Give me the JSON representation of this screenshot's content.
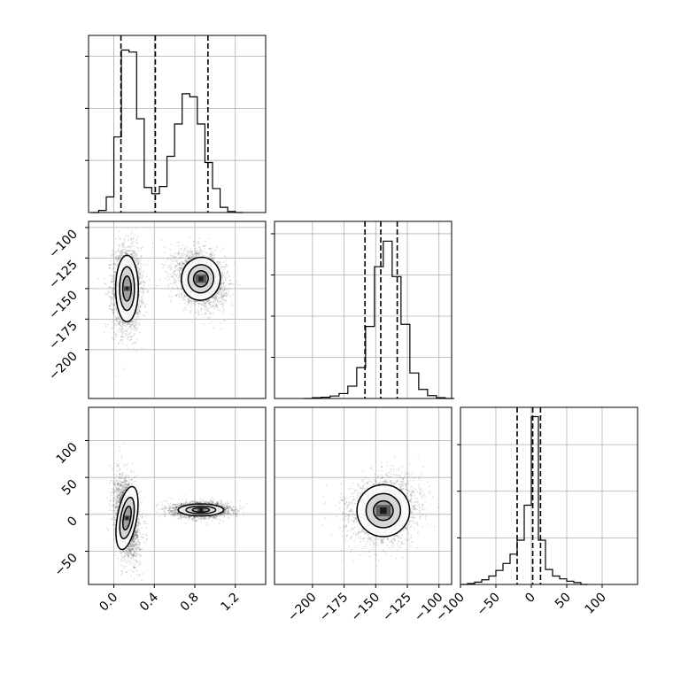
{
  "chart_data": [
    {
      "type": "histogram",
      "panel": "x0-marginal",
      "x_range": [
        -0.25,
        1.5
      ],
      "bins": [
        {
          "x0": -0.15,
          "x1": -0.075,
          "count": 4
        },
        {
          "x0": -0.075,
          "x1": 0.0,
          "count": 30
        },
        {
          "x0": 0.0,
          "x1": 0.075,
          "count": 145
        },
        {
          "x0": 0.075,
          "x1": 0.15,
          "count": 312
        },
        {
          "x0": 0.15,
          "x1": 0.225,
          "count": 308
        },
        {
          "x0": 0.225,
          "x1": 0.3,
          "count": 180
        },
        {
          "x0": 0.3,
          "x1": 0.375,
          "count": 48
        },
        {
          "x0": 0.375,
          "x1": 0.45,
          "count": 36
        },
        {
          "x0": 0.45,
          "x1": 0.525,
          "count": 50
        },
        {
          "x0": 0.525,
          "x1": 0.6,
          "count": 108
        },
        {
          "x0": 0.6,
          "x1": 0.675,
          "count": 170
        },
        {
          "x0": 0.675,
          "x1": 0.75,
          "count": 228
        },
        {
          "x0": 0.75,
          "x1": 0.825,
          "count": 222
        },
        {
          "x0": 0.825,
          "x1": 0.9,
          "count": 170
        },
        {
          "x0": 0.9,
          "x1": 0.975,
          "count": 96
        },
        {
          "x0": 0.975,
          "x1": 1.05,
          "count": 46
        },
        {
          "x0": 1.05,
          "x1": 1.125,
          "count": 10
        },
        {
          "x0": 1.125,
          "x1": 1.2,
          "count": 2
        }
      ],
      "quantiles": [
        0.07,
        0.41,
        0.93
      ],
      "y_ticks": [
        100,
        200,
        300
      ],
      "ylim": [
        0,
        340
      ]
    },
    {
      "type": "histogram",
      "panel": "x1-marginal",
      "x_range": [
        -230,
        -90
      ],
      "bins": [
        {
          "x0": -200,
          "x1": -193,
          "count": 2
        },
        {
          "x0": -193,
          "x1": -186,
          "count": 3
        },
        {
          "x0": -186,
          "x1": -179,
          "count": 6
        },
        {
          "x0": -179,
          "x1": -172,
          "count": 12
        },
        {
          "x0": -172,
          "x1": -165,
          "count": 30
        },
        {
          "x0": -165,
          "x1": -158,
          "count": 75
        },
        {
          "x0": -158,
          "x1": -151,
          "count": 175
        },
        {
          "x0": -151,
          "x1": -144,
          "count": 320
        },
        {
          "x0": -144,
          "x1": -137,
          "count": 382
        },
        {
          "x0": -137,
          "x1": -130,
          "count": 296
        },
        {
          "x0": -130,
          "x1": -123,
          "count": 180
        },
        {
          "x0": -123,
          "x1": -116,
          "count": 62
        },
        {
          "x0": -116,
          "x1": -109,
          "count": 22
        },
        {
          "x0": -109,
          "x1": -102,
          "count": 7
        },
        {
          "x0": -102,
          "x1": -95,
          "count": 2
        }
      ],
      "quantiles": [
        -158.5,
        -146,
        -133
      ],
      "y_ticks": [
        100,
        200,
        300,
        400
      ],
      "ylim": [
        0,
        430
      ]
    },
    {
      "type": "histogram",
      "panel": "x2-marginal",
      "x_range": [
        -100,
        150
      ],
      "bins": [
        {
          "x0": -90,
          "x1": -80,
          "count": 2
        },
        {
          "x0": -80,
          "x1": -70,
          "count": 5
        },
        {
          "x0": -70,
          "x1": -60,
          "count": 10
        },
        {
          "x0": -60,
          "x1": -50,
          "count": 18
        },
        {
          "x0": -50,
          "x1": -40,
          "count": 30
        },
        {
          "x0": -40,
          "x1": -30,
          "count": 45
        },
        {
          "x0": -30,
          "x1": -20,
          "count": 65
        },
        {
          "x0": -20,
          "x1": -10,
          "count": 95
        },
        {
          "x0": -10,
          "x1": 0,
          "count": 170
        },
        {
          "x0": 0,
          "x1": 10,
          "count": 360
        },
        {
          "x0": 10,
          "x1": 20,
          "count": 95
        },
        {
          "x0": 20,
          "x1": 30,
          "count": 32
        },
        {
          "x0": 30,
          "x1": 40,
          "count": 18
        },
        {
          "x0": 40,
          "x1": 50,
          "count": 12
        },
        {
          "x0": 50,
          "x1": 60,
          "count": 7
        },
        {
          "x0": 60,
          "x1": 70,
          "count": 4
        }
      ],
      "quantiles": [
        -20,
        2,
        13
      ],
      "y_ticks": [
        100,
        200,
        300
      ],
      "ylim": [
        0,
        380
      ]
    },
    {
      "type": "scatter-contour",
      "panel": "x0-vs-x1",
      "x_range": [
        -0.25,
        1.5
      ],
      "y_range": [
        -240,
        -95
      ],
      "clusters": [
        {
          "mean": [
            0.13,
            -150
          ],
          "sd": [
            0.07,
            17
          ],
          "corr": 0
        },
        {
          "mean": [
            0.86,
            -142
          ],
          "sd": [
            0.12,
            11
          ],
          "corr": -0.25
        }
      ],
      "contour_levels_in_sd": [
        0.6,
        1.05,
        1.6
      ]
    },
    {
      "type": "scatter-contour",
      "panel": "x0-vs-x2",
      "x_range": [
        -0.25,
        1.5
      ],
      "y_range": [
        -95,
        145
      ],
      "clusters": [
        {
          "mean": [
            0.13,
            -5
          ],
          "sd": [
            0.06,
            27
          ],
          "corr": -0.3
        },
        {
          "mean": [
            0.86,
            6
          ],
          "sd": [
            0.14,
            5
          ],
          "corr": 0
        }
      ],
      "contour_levels_in_sd": [
        0.6,
        1.05,
        1.6
      ]
    },
    {
      "type": "scatter-contour",
      "panel": "x1-vs-x2",
      "x_range": [
        -230,
        -90
      ],
      "y_range": [
        -95,
        145
      ],
      "clusters": [
        {
          "mean": [
            -144,
            5
          ],
          "sd": [
            13,
            22
          ],
          "corr": 0.15
        }
      ],
      "contour_levels_in_sd": [
        0.6,
        1.05,
        1.6
      ]
    }
  ],
  "axis_ticks": {
    "x0": [
      "0.0",
      "0.4",
      "0.8",
      "1.2"
    ],
    "x0_values": [
      0.0,
      0.4,
      0.8,
      1.2
    ],
    "x1": [
      "−200",
      "−175",
      "−150",
      "−125",
      "−100"
    ],
    "x1_values": [
      -200,
      -175,
      -150,
      -125,
      -100
    ],
    "x2": [
      "−50",
      "0",
      "50",
      "100"
    ],
    "x2_values": [
      -50,
      0,
      50,
      100
    ],
    "x2_bottom": [
      "−100",
      "−50",
      "0",
      "50",
      "100"
    ],
    "x2_bottom_values": [
      -100,
      -50,
      0,
      50,
      100
    ]
  },
  "style": {
    "line": "#000000",
    "grid": "#b0b0b0",
    "scatter": "#000000",
    "density_dark": "#1a1a1a"
  }
}
